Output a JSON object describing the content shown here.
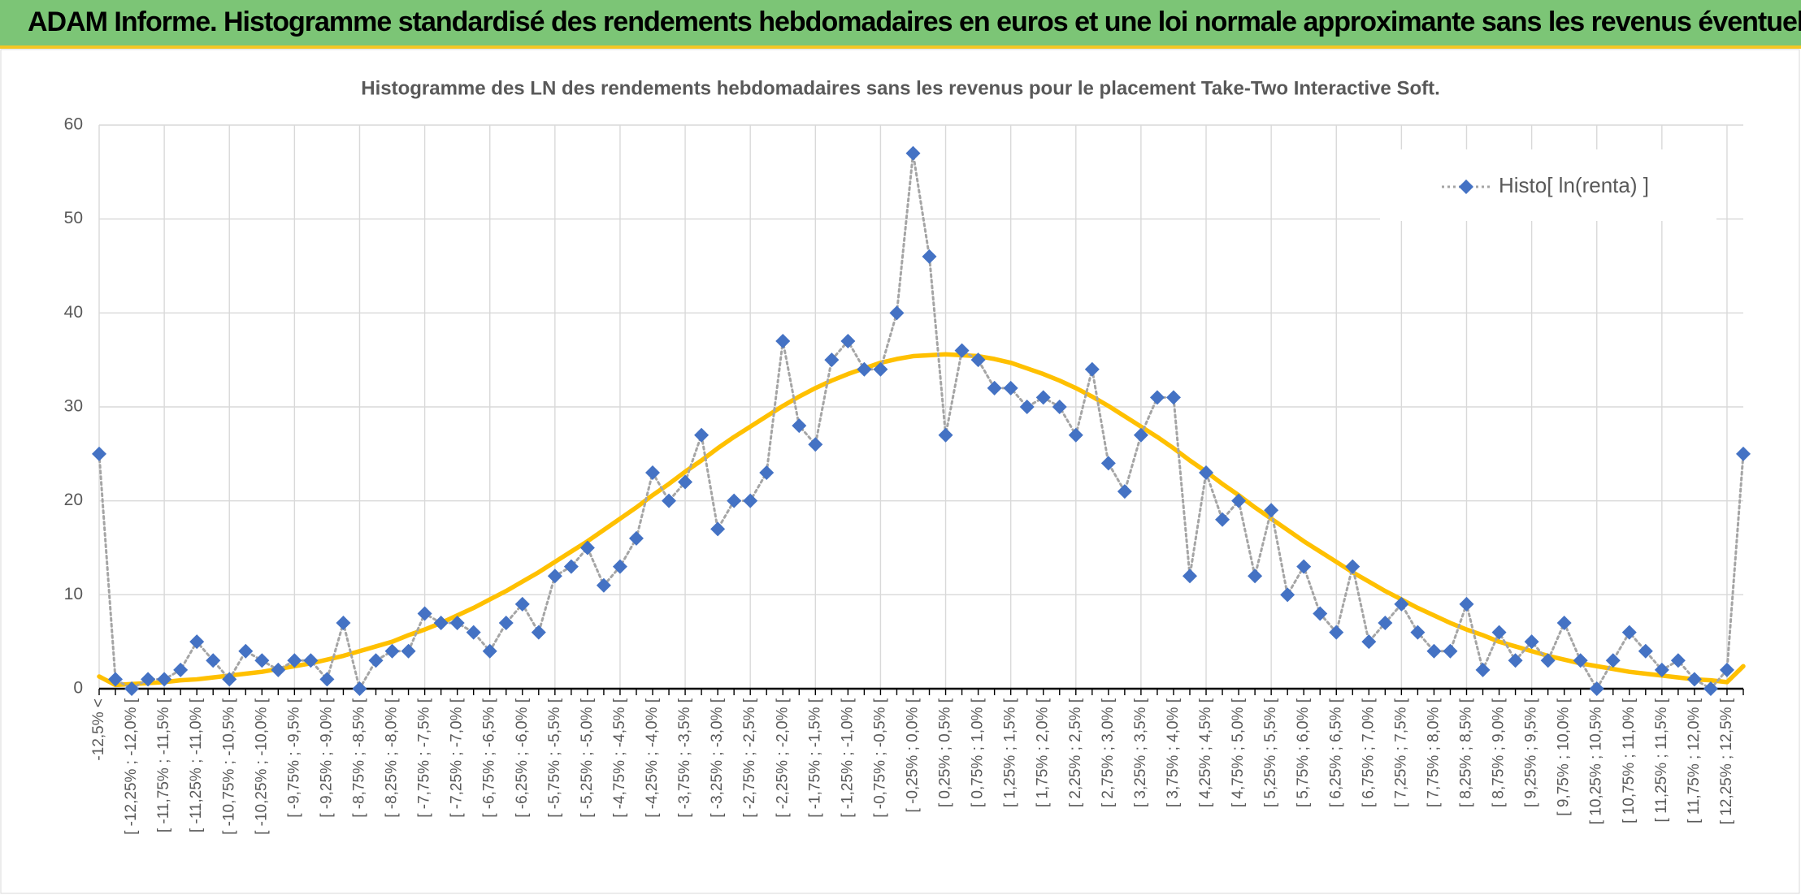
{
  "header": {
    "title": "ADAM Informe. Histogramme standardisé des rendements hebdomadaires en euros et une loi normale approximante sans les revenus éventuels"
  },
  "chart_data": {
    "type": "line",
    "title": "Histogramme des LN des rendements hebdomadaires sans les revenus pour le placement Take-Two Interactive Soft.",
    "categories": [
      "-12,5% <",
      null,
      "[ -12,25% ; -12,0% [",
      null,
      "[ -11,75% ; -11,5% [",
      null,
      "[ -11,25% ; -11,0% [",
      null,
      "[ -10,75% ; -10,5% [",
      null,
      "[ -10,25% ; -10,0% [",
      null,
      "[ -9,75% ; -9,5% [",
      null,
      "[ -9,25% ; -9,0% [",
      null,
      "[ -8,75% ; -8,5% [",
      null,
      "[ -8,25% ; -8,0% [",
      null,
      "[ -7,75% ; -7,5% [",
      null,
      "[ -7,25% ; -7,0% [",
      null,
      "[ -6,75% ; -6,5% [",
      null,
      "[ -6,25% ; -6,0% [",
      null,
      "[ -5,75% ; -5,5% [",
      null,
      "[ -5,25% ; -5,0% [",
      null,
      "[ -4,75% ; -4,5% [",
      null,
      "[ -4,25% ; -4,0% [",
      null,
      "[ -3,75% ; -3,5% [",
      null,
      "[ -3,25% ; -3,0% [",
      null,
      "[ -2,75% ; -2,5% [",
      null,
      "[ -2,25% ; -2,0% [",
      null,
      "[ -1,75% ; -1,5% [",
      null,
      "[ -1,25% ; -1,0% [",
      null,
      "[ -0,75% ; -0,5% [",
      null,
      "[ -0,25% ; 0,0% [",
      null,
      "[ 0,25% ; 0,5% [",
      null,
      "[ 0,75% ; 1,0% [",
      null,
      "[ 1,25% ; 1,5% [",
      null,
      "[ 1,75% ; 2,0% [",
      null,
      "[ 2,25% ; 2,5% [",
      null,
      "[ 2,75% ; 3,0% [",
      null,
      "[ 3,25% ; 3,5% [",
      null,
      "[ 3,75% ; 4,0% [",
      null,
      "[ 4,25% ; 4,5% [",
      null,
      "[ 4,75% ; 5,0% [",
      null,
      "[ 5,25% ; 5,5% [",
      null,
      "[ 5,75% ; 6,0% [",
      null,
      "[ 6,25% ; 6,5% [",
      null,
      "[ 6,75% ; 7,0% [",
      null,
      "[ 7,25% ; 7,5% [",
      null,
      "[ 7,75% ; 8,0% [",
      null,
      "[ 8,25% ; 8,5% [",
      null,
      "[ 8,75% ; 9,0% [",
      null,
      "[ 9,25% ; 9,5% [",
      null,
      "[ 9,75% ; 10,0% [",
      null,
      "[ 10,25% ; 10,5% [",
      null,
      "[ 10,75% ; 11,0% [",
      null,
      "[ 11,25% ; 11,5% [",
      null,
      "[ 11,75% ; 12,0% [",
      null,
      "[ 12,25% ; 12,5% [",
      null
    ],
    "series": [
      {
        "name": "Histo[ ln(renta) ]",
        "color": "#4472c4",
        "line_color": "#a5a5a5",
        "line_style": "dotted",
        "marker": "diamond",
        "values": [
          25,
          1,
          0,
          1,
          1,
          2,
          5,
          3,
          1,
          4,
          3,
          2,
          3,
          3,
          1,
          7,
          0,
          3,
          4,
          4,
          8,
          7,
          7,
          6,
          4,
          7,
          9,
          6,
          12,
          13,
          15,
          11,
          13,
          16,
          23,
          20,
          22,
          27,
          17,
          20,
          20,
          23,
          37,
          28,
          26,
          35,
          37,
          34,
          34,
          40,
          57,
          46,
          27,
          36,
          35,
          32,
          32,
          30,
          31,
          30,
          27,
          34,
          24,
          21,
          27,
          31,
          31,
          12,
          23,
          18,
          20,
          12,
          19,
          10,
          13,
          8,
          6,
          13,
          5,
          7,
          9,
          6,
          4,
          4,
          9,
          2,
          6,
          3,
          5,
          3,
          7,
          3,
          0,
          3,
          6,
          4,
          2,
          3,
          1,
          0,
          2,
          25
        ]
      },
      {
        "color": "#ffc000",
        "values": [
          1.3,
          0.4,
          0.5,
          0.6,
          0.7,
          0.9,
          1.0,
          1.2,
          1.4,
          1.6,
          1.8,
          2.1,
          2.4,
          2.7,
          3.1,
          3.5,
          4.0,
          4.5,
          5.0,
          5.7,
          6.3,
          7.0,
          7.8,
          8.6,
          9.5,
          10.4,
          11.4,
          12.4,
          13.5,
          14.6,
          15.7,
          16.9,
          18.1,
          19.3,
          20.6,
          21.8,
          23.1,
          24.3,
          25.6,
          26.8,
          27.9,
          29.0,
          30.1,
          31.1,
          32.0,
          32.8,
          33.5,
          34.1,
          34.7,
          35.1,
          35.4,
          35.5,
          35.6,
          35.5,
          35.4,
          35.1,
          34.7,
          34.1,
          33.5,
          32.8,
          32.0,
          31.1,
          30.1,
          29.0,
          27.9,
          26.8,
          25.6,
          24.3,
          23.1,
          21.8,
          20.6,
          19.3,
          18.1,
          16.9,
          15.7,
          14.6,
          13.5,
          12.4,
          11.4,
          10.4,
          9.5,
          8.6,
          7.8,
          7.0,
          6.3,
          5.7,
          5.0,
          4.5,
          4.0,
          3.5,
          3.1,
          2.7,
          2.4,
          2.1,
          1.8,
          1.6,
          1.4,
          1.2,
          1.0,
          0.9,
          0.7,
          2.4
        ]
      }
    ],
    "ylim": [
      0,
      60
    ],
    "yticks": [
      0,
      10,
      20,
      30,
      40,
      50,
      60
    ],
    "grid": true,
    "legend": "top-right"
  }
}
